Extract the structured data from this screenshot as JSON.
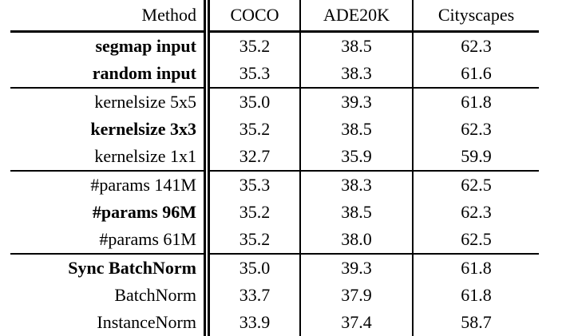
{
  "table": {
    "columns": [
      "Method",
      "COCO",
      "ADE20K",
      "Cityscapes"
    ],
    "rows": [
      {
        "method": "segmap input",
        "bold": true,
        "group_start": false,
        "values": [
          "35.2",
          "38.5",
          "62.3"
        ]
      },
      {
        "method": "random input",
        "bold": true,
        "group_start": false,
        "values": [
          "35.3",
          "38.3",
          "61.6"
        ]
      },
      {
        "method": "kernelsize 5x5",
        "bold": false,
        "group_start": true,
        "values": [
          "35.0",
          "39.3",
          "61.8"
        ]
      },
      {
        "method": "kernelsize 3x3",
        "bold": true,
        "group_start": false,
        "values": [
          "35.2",
          "38.5",
          "62.3"
        ]
      },
      {
        "method": "kernelsize 1x1",
        "bold": false,
        "group_start": false,
        "values": [
          "32.7",
          "35.9",
          "59.9"
        ]
      },
      {
        "method": "#params 141M",
        "bold": false,
        "group_start": true,
        "values": [
          "35.3",
          "38.3",
          "62.5"
        ]
      },
      {
        "method": "#params 96M",
        "bold": true,
        "group_start": false,
        "values": [
          "35.2",
          "38.5",
          "62.3"
        ]
      },
      {
        "method": "#params 61M",
        "bold": false,
        "group_start": false,
        "values": [
          "35.2",
          "38.0",
          "62.5"
        ]
      },
      {
        "method": "Sync BatchNorm",
        "bold": true,
        "group_start": true,
        "values": [
          "35.0",
          "39.3",
          "61.8"
        ]
      },
      {
        "method": "BatchNorm",
        "bold": false,
        "group_start": false,
        "values": [
          "33.7",
          "37.9",
          "61.8"
        ]
      },
      {
        "method": "InstanceNorm",
        "bold": false,
        "group_start": false,
        "values": [
          "33.9",
          "37.4",
          "58.7"
        ]
      }
    ]
  },
  "chart_data": {
    "type": "table",
    "title": "",
    "columns": [
      "Method",
      "COCO",
      "ADE20K",
      "Cityscapes"
    ],
    "rows": [
      [
        "segmap input",
        35.2,
        38.5,
        62.3
      ],
      [
        "random input",
        35.3,
        38.3,
        61.6
      ],
      [
        "kernelsize 5x5",
        35.0,
        39.3,
        61.8
      ],
      [
        "kernelsize 3x3",
        35.2,
        38.5,
        62.3
      ],
      [
        "kernelsize 1x1",
        32.7,
        35.9,
        59.9
      ],
      [
        "#params 141M",
        35.3,
        38.3,
        62.5
      ],
      [
        "#params 96M",
        35.2,
        38.5,
        62.3
      ],
      [
        "#params 61M",
        35.2,
        38.0,
        62.5
      ],
      [
        "Sync BatchNorm",
        35.0,
        39.3,
        61.8
      ],
      [
        "BatchNorm",
        33.7,
        37.9,
        61.8
      ],
      [
        "InstanceNorm",
        33.9,
        37.4,
        58.7
      ]
    ]
  }
}
